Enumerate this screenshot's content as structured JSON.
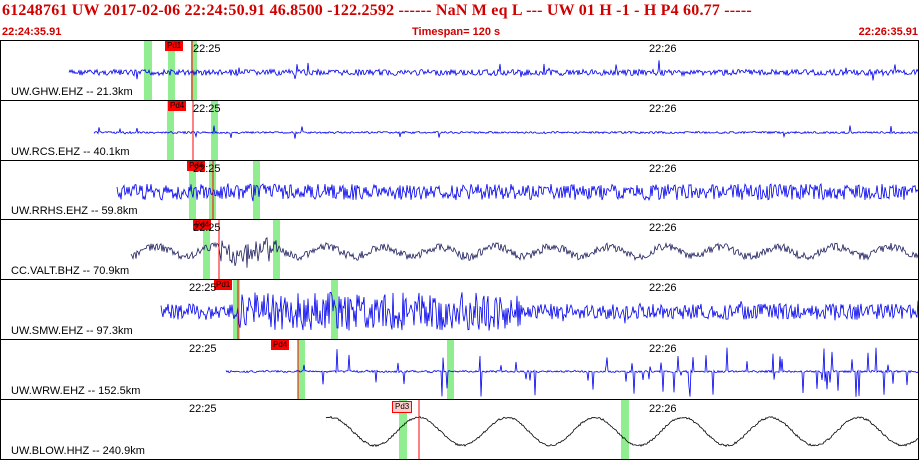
{
  "header": {
    "title": "61248761 UW 2017-02-06 22:24:50.91   46.8500 -122.2592 ------   NaN M   eq  L ---      UW 01  H  -1  -  H P4   60.77 -----",
    "start_time": "22:24:35.91",
    "timespan": "Timespan= 120 s",
    "end_time": "22:26:35.91"
  },
  "colors": {
    "header_text": "#d00000",
    "trace_blue": "#0000ee",
    "trace_navy": "#202060",
    "trace_black": "#000000",
    "pick": "#ff0000",
    "marker": "#90ee90"
  },
  "traces": [
    {
      "label": "UW.GHW.EHZ -- 21.3km",
      "ticks": [
        "22:25",
        "22:26"
      ],
      "pick": "Pd1",
      "color": "#0000ee",
      "style": "noise-burst"
    },
    {
      "label": "UW.RCS.EHZ -- 40.1km",
      "ticks": [
        "22:25",
        "22:26"
      ],
      "pick": "Pd4",
      "color": "#0000ee",
      "style": "quiet"
    },
    {
      "label": "UW.RRHS.EHZ -- 59.8km",
      "ticks": [
        "22:25",
        "22:26"
      ],
      "pick": "Pd4",
      "color": "#0000ee",
      "style": "noise"
    },
    {
      "label": "CC.VALT.BHZ -- 70.9km",
      "ticks": [
        "22:25",
        "22:26"
      ],
      "pick": "Pd4",
      "color": "#202060",
      "style": "wavy"
    },
    {
      "label": "UW.SMW.EHZ -- 97.3km",
      "ticks": [
        "22:25",
        "22:26"
      ],
      "pick": "Pd1",
      "color": "#0000ee",
      "style": "strong"
    },
    {
      "label": "UW.WRW.EHZ -- 152.5km",
      "ticks": [
        "22:25",
        "22:26"
      ],
      "pick": "Pd4",
      "color": "#0000ee",
      "style": "spiky"
    },
    {
      "label": "UW.BLOW.HHZ -- 240.9km",
      "ticks": [
        "22:25",
        "22:26"
      ],
      "pick": "Pd3",
      "color": "#000000",
      "style": "long"
    }
  ]
}
